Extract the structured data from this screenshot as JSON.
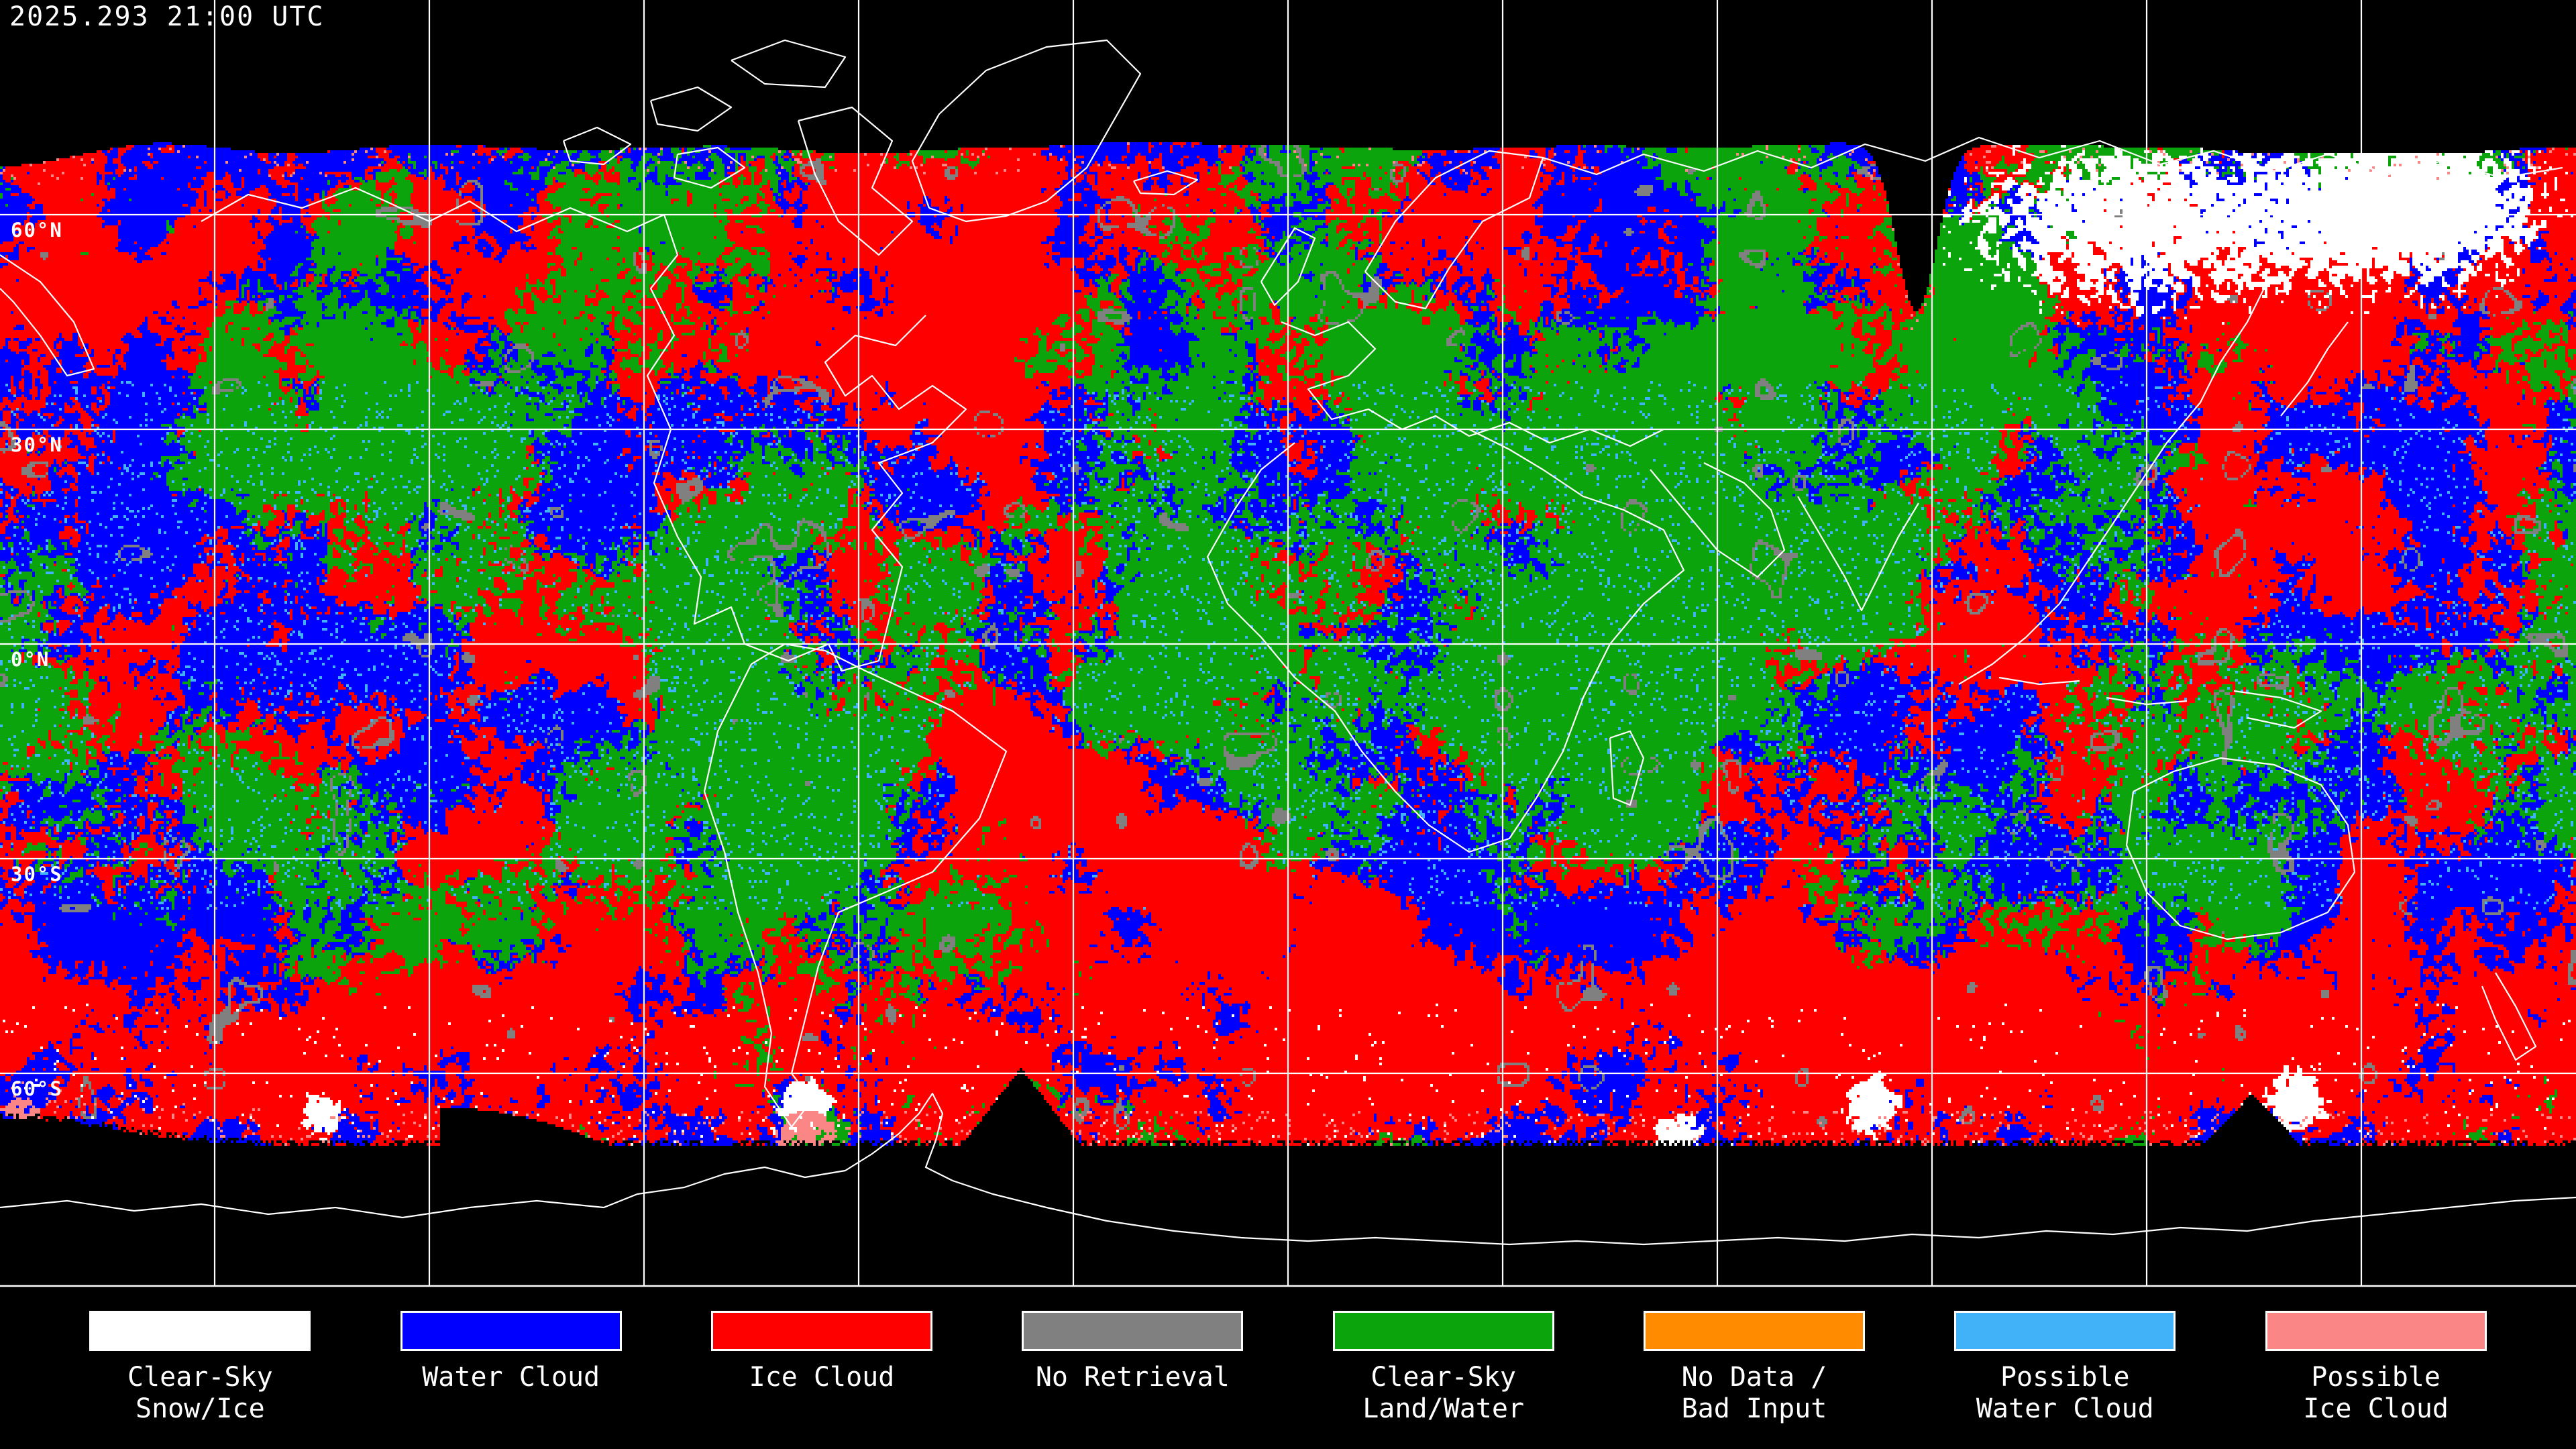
{
  "header": {
    "timestamp": "2025.293 21:00 UTC"
  },
  "map": {
    "projection": "equirectangular",
    "grid_spacing_deg": 30,
    "background_color": "#000000",
    "graticule_color": "#FFFFFF",
    "coastline_color": "#FFFFFF",
    "latitude_labels": [
      {
        "text": "60°N",
        "lat": 60
      },
      {
        "text": "30°N",
        "lat": 30
      },
      {
        "text": "0°N",
        "lat": 0
      },
      {
        "text": "30°S",
        "lat": -30
      },
      {
        "text": "60°S",
        "lat": -60
      }
    ]
  },
  "classes": {
    "clear_sky_snow_ice": "#FFFFFF",
    "water_cloud": "#0000FF",
    "ice_cloud": "#FF0000",
    "no_retrieval": "#808080",
    "clear_sky_land_water": "#0CA40C",
    "no_data_bad_input": "#FF8C00",
    "possible_water_cloud": "#41B2F8",
    "possible_ice_cloud": "#FA8686"
  },
  "legend": {
    "items": [
      {
        "lines": [
          "Clear-Sky",
          "Snow/Ice"
        ],
        "color": "#FFFFFF"
      },
      {
        "lines": [
          "Water Cloud"
        ],
        "color": "#0000FF"
      },
      {
        "lines": [
          "Ice Cloud"
        ],
        "color": "#FF0000"
      },
      {
        "lines": [
          "No Retrieval"
        ],
        "color": "#808080"
      },
      {
        "lines": [
          "Clear-Sky",
          "Land/Water"
        ],
        "color": "#0CA40C"
      },
      {
        "lines": [
          "No Data /",
          "Bad Input"
        ],
        "color": "#FF8C00"
      },
      {
        "lines": [
          "Possible",
          "Water Cloud"
        ],
        "color": "#41B2F8"
      },
      {
        "lines": [
          "Possible",
          "Ice Cloud"
        ],
        "color": "#FA8686"
      }
    ]
  }
}
